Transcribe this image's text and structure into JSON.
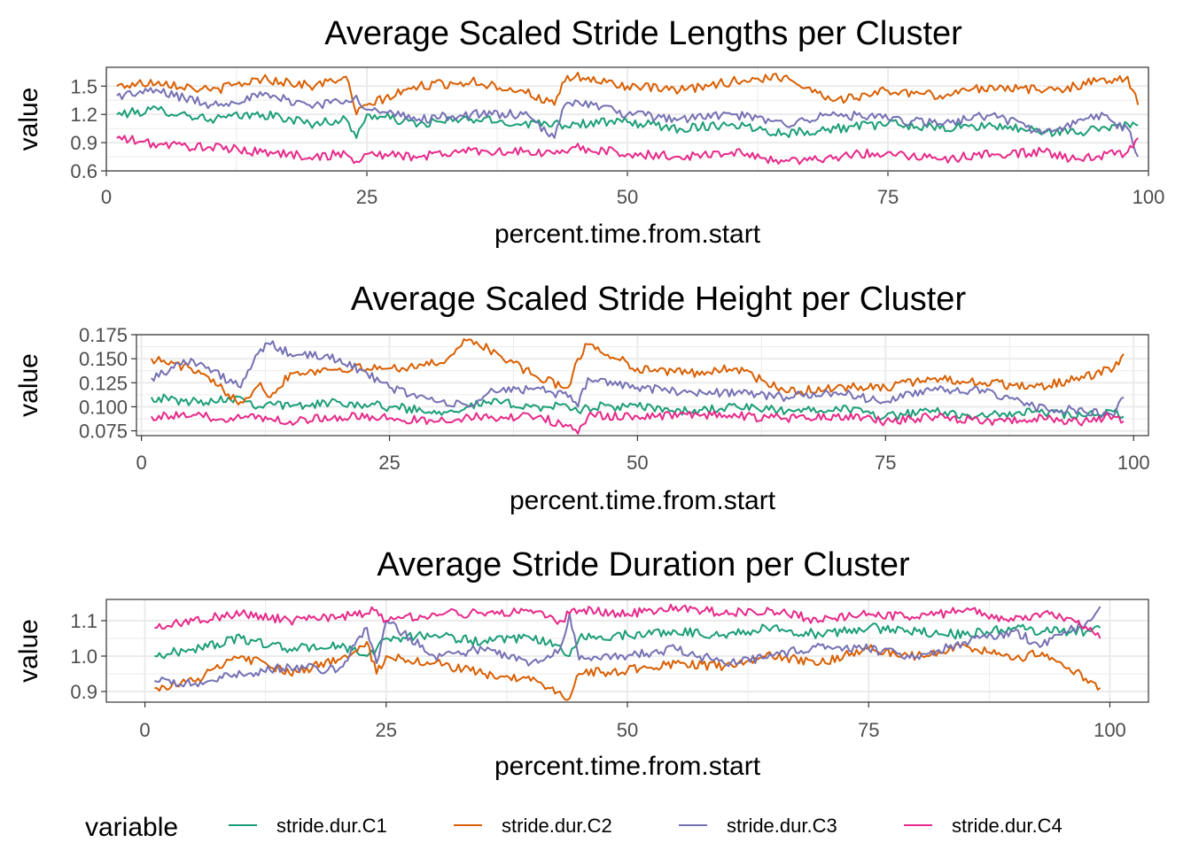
{
  "chart_data": [
    {
      "type": "line",
      "title": "Average Scaled Stride Lengths per Cluster",
      "xlabel": "percent.time.from.start",
      "ylabel": "value",
      "xlim": [
        0,
        100
      ],
      "ylim": [
        0.6,
        1.7
      ],
      "xticks": [
        0,
        25,
        50,
        75,
        100
      ],
      "yticks": [
        0.6,
        0.9,
        1.2,
        1.5
      ],
      "ytick_labels": [
        "0.6",
        "0.9",
        "1.2",
        "1.5"
      ],
      "grid": true,
      "x": [
        1,
        5,
        10,
        15,
        20,
        23,
        24,
        25,
        30,
        35,
        40,
        43,
        44,
        45,
        50,
        55,
        60,
        65,
        70,
        75,
        80,
        85,
        90,
        93,
        95,
        98,
        99
      ],
      "series": [
        {
          "name": "stride.dur.C1",
          "color": "#1b9e77",
          "values": [
            1.2,
            1.25,
            1.15,
            1.2,
            1.1,
            1.15,
            0.95,
            1.2,
            1.1,
            1.15,
            1.1,
            1.12,
            1.08,
            1.1,
            1.12,
            1.05,
            1.1,
            1.0,
            1.05,
            1.1,
            1.05,
            1.08,
            1.02,
            1.0,
            1.05,
            1.1,
            1.08
          ]
        },
        {
          "name": "stride.dur.C2",
          "color": "#d95f02",
          "values": [
            1.5,
            1.55,
            1.45,
            1.58,
            1.5,
            1.6,
            1.2,
            1.3,
            1.5,
            1.55,
            1.45,
            1.3,
            1.55,
            1.6,
            1.5,
            1.45,
            1.55,
            1.6,
            1.35,
            1.45,
            1.4,
            1.5,
            1.45,
            1.5,
            1.55,
            1.6,
            1.3
          ]
        },
        {
          "name": "stride.dur.C3",
          "color": "#7570b3",
          "values": [
            1.4,
            1.45,
            1.3,
            1.4,
            1.3,
            1.35,
            1.4,
            1.25,
            1.15,
            1.2,
            1.2,
            0.95,
            1.3,
            1.35,
            1.2,
            1.15,
            1.2,
            1.1,
            1.2,
            1.15,
            1.1,
            1.2,
            1.0,
            1.1,
            1.2,
            1.05,
            0.75
          ]
        },
        {
          "name": "stride.dur.C4",
          "color": "#e7298a",
          "values": [
            0.95,
            0.88,
            0.85,
            0.8,
            0.75,
            0.78,
            0.7,
            0.78,
            0.75,
            0.82,
            0.8,
            0.78,
            0.8,
            0.85,
            0.78,
            0.75,
            0.8,
            0.7,
            0.75,
            0.8,
            0.72,
            0.78,
            0.8,
            0.72,
            0.75,
            0.8,
            0.95
          ]
        }
      ]
    },
    {
      "type": "line",
      "title": "Average Scaled Stride Height per Cluster",
      "xlabel": "percent.time.from.start",
      "ylabel": "value",
      "xlim": [
        -0.5,
        101.5
      ],
      "ylim": [
        0.07,
        0.175
      ],
      "xticks": [
        0,
        25,
        50,
        75,
        100
      ],
      "yticks": [
        0.075,
        0.1,
        0.125,
        0.15,
        0.175
      ],
      "ytick_labels": [
        "0.075",
        "0.100",
        "0.125",
        "0.150",
        "0.175"
      ],
      "grid": true,
      "x": [
        1,
        5,
        10,
        12,
        13,
        15,
        20,
        25,
        30,
        33,
        35,
        40,
        43,
        44,
        45,
        50,
        55,
        60,
        65,
        70,
        75,
        80,
        85,
        90,
        95,
        98,
        99
      ],
      "series": [
        {
          "name": "stride.dur.C1",
          "color": "#1b9e77",
          "values": [
            0.11,
            0.105,
            0.11,
            0.1,
            0.105,
            0.1,
            0.105,
            0.1,
            0.095,
            0.1,
            0.105,
            0.1,
            0.1,
            0.095,
            0.1,
            0.1,
            0.095,
            0.1,
            0.095,
            0.1,
            0.09,
            0.095,
            0.09,
            0.095,
            0.09,
            0.095,
            0.09
          ]
        },
        {
          "name": "stride.dur.C2",
          "color": "#d95f02",
          "values": [
            0.15,
            0.14,
            0.105,
            0.125,
            0.11,
            0.135,
            0.14,
            0.14,
            0.145,
            0.17,
            0.16,
            0.13,
            0.12,
            0.15,
            0.165,
            0.14,
            0.135,
            0.14,
            0.115,
            0.12,
            0.12,
            0.13,
            0.125,
            0.12,
            0.13,
            0.14,
            0.155
          ]
        },
        {
          "name": "stride.dur.C3",
          "color": "#7570b3",
          "values": [
            0.13,
            0.15,
            0.12,
            0.16,
            0.165,
            0.155,
            0.15,
            0.12,
            0.105,
            0.1,
            0.115,
            0.12,
            0.11,
            0.1,
            0.13,
            0.12,
            0.115,
            0.115,
            0.11,
            0.115,
            0.105,
            0.12,
            0.115,
            0.1,
            0.095,
            0.09,
            0.11
          ]
        },
        {
          "name": "stride.dur.C4",
          "color": "#e7298a",
          "values": [
            0.09,
            0.09,
            0.088,
            0.09,
            0.088,
            0.085,
            0.09,
            0.088,
            0.085,
            0.09,
            0.088,
            0.09,
            0.08,
            0.072,
            0.09,
            0.09,
            0.092,
            0.09,
            0.088,
            0.09,
            0.085,
            0.09,
            0.085,
            0.088,
            0.085,
            0.09,
            0.085
          ]
        }
      ]
    },
    {
      "type": "line",
      "title": "Average Stride Duration per Cluster",
      "xlabel": "percent.time.from.start",
      "ylabel": "value",
      "xlim": [
        -4,
        104
      ],
      "ylim": [
        0.87,
        1.16
      ],
      "xticks": [
        0,
        25,
        50,
        75,
        100
      ],
      "yticks": [
        0.9,
        1.0,
        1.1
      ],
      "ytick_labels": [
        "0.9",
        "1.0",
        "1.1"
      ],
      "grid": true,
      "x": [
        1,
        5,
        10,
        15,
        20,
        23,
        24,
        25,
        30,
        35,
        40,
        43,
        44,
        45,
        50,
        55,
        60,
        65,
        70,
        75,
        80,
        85,
        90,
        93,
        95,
        98,
        99
      ],
      "series": [
        {
          "name": "stride.dur.C1",
          "color": "#1b9e77",
          "values": [
            1.0,
            1.02,
            1.05,
            1.02,
            1.03,
            1.0,
            1.02,
            1.05,
            1.06,
            1.04,
            1.05,
            1.03,
            1.0,
            1.05,
            1.06,
            1.07,
            1.06,
            1.08,
            1.06,
            1.08,
            1.07,
            1.06,
            1.08,
            1.07,
            1.07,
            1.07,
            1.08
          ]
        },
        {
          "name": "stride.dur.C2",
          "color": "#d95f02",
          "values": [
            0.91,
            0.93,
            1.0,
            0.95,
            0.99,
            1.04,
            0.95,
            1.0,
            0.98,
            0.95,
            0.93,
            0.9,
            0.88,
            0.95,
            0.96,
            0.98,
            0.97,
            1.0,
            0.98,
            1.02,
            1.0,
            1.03,
            0.99,
            1.01,
            0.98,
            0.93,
            0.91
          ]
        },
        {
          "name": "stride.dur.C3",
          "color": "#7570b3",
          "values": [
            0.93,
            0.92,
            0.95,
            0.97,
            0.96,
            1.08,
            0.98,
            1.1,
            1.0,
            1.02,
            0.98,
            1.02,
            1.12,
            0.99,
            1.0,
            1.02,
            0.98,
            1.0,
            1.03,
            1.02,
            1.0,
            1.04,
            1.07,
            1.03,
            1.06,
            1.1,
            1.14
          ]
        },
        {
          "name": "stride.dur.C4",
          "color": "#e7298a",
          "values": [
            1.08,
            1.1,
            1.12,
            1.1,
            1.11,
            1.12,
            1.13,
            1.1,
            1.12,
            1.12,
            1.13,
            1.1,
            1.12,
            1.13,
            1.12,
            1.14,
            1.12,
            1.13,
            1.1,
            1.12,
            1.11,
            1.13,
            1.1,
            1.12,
            1.11,
            1.08,
            1.05
          ]
        }
      ]
    }
  ],
  "legend": {
    "title": "variable",
    "position": "bottom",
    "items": [
      {
        "label": "stride.dur.C1",
        "color": "#1b9e77"
      },
      {
        "label": "stride.dur.C2",
        "color": "#d95f02"
      },
      {
        "label": "stride.dur.C3",
        "color": "#7570b3"
      },
      {
        "label": "stride.dur.C4",
        "color": "#e7298a"
      }
    ]
  }
}
